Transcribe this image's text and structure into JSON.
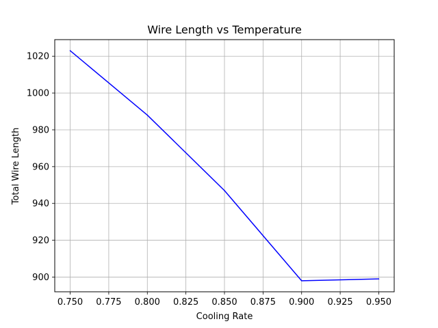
{
  "chart_data": {
    "type": "line",
    "title": "Wire Length vs Temperature",
    "xlabel": "Cooling Rate",
    "ylabel": "Total Wire Length",
    "xlim": [
      0.74,
      0.96
    ],
    "ylim": [
      892,
      1029
    ],
    "xticks": [
      0.75,
      0.775,
      0.8,
      0.825,
      0.85,
      0.875,
      0.9,
      0.925,
      0.95
    ],
    "xtick_labels": [
      "0.750",
      "0.775",
      "0.800",
      "0.825",
      "0.850",
      "0.875",
      "0.900",
      "0.925",
      "0.950"
    ],
    "yticks": [
      900,
      920,
      940,
      960,
      980,
      1000,
      1020
    ],
    "ytick_labels": [
      "900",
      "920",
      "940",
      "960",
      "980",
      "1000",
      "1020"
    ],
    "grid": true,
    "series": [
      {
        "color": "#0000ff",
        "x": [
          0.75,
          0.8,
          0.85,
          0.9,
          0.95
        ],
        "y": [
          1023,
          988,
          947,
          898,
          899
        ]
      }
    ]
  }
}
